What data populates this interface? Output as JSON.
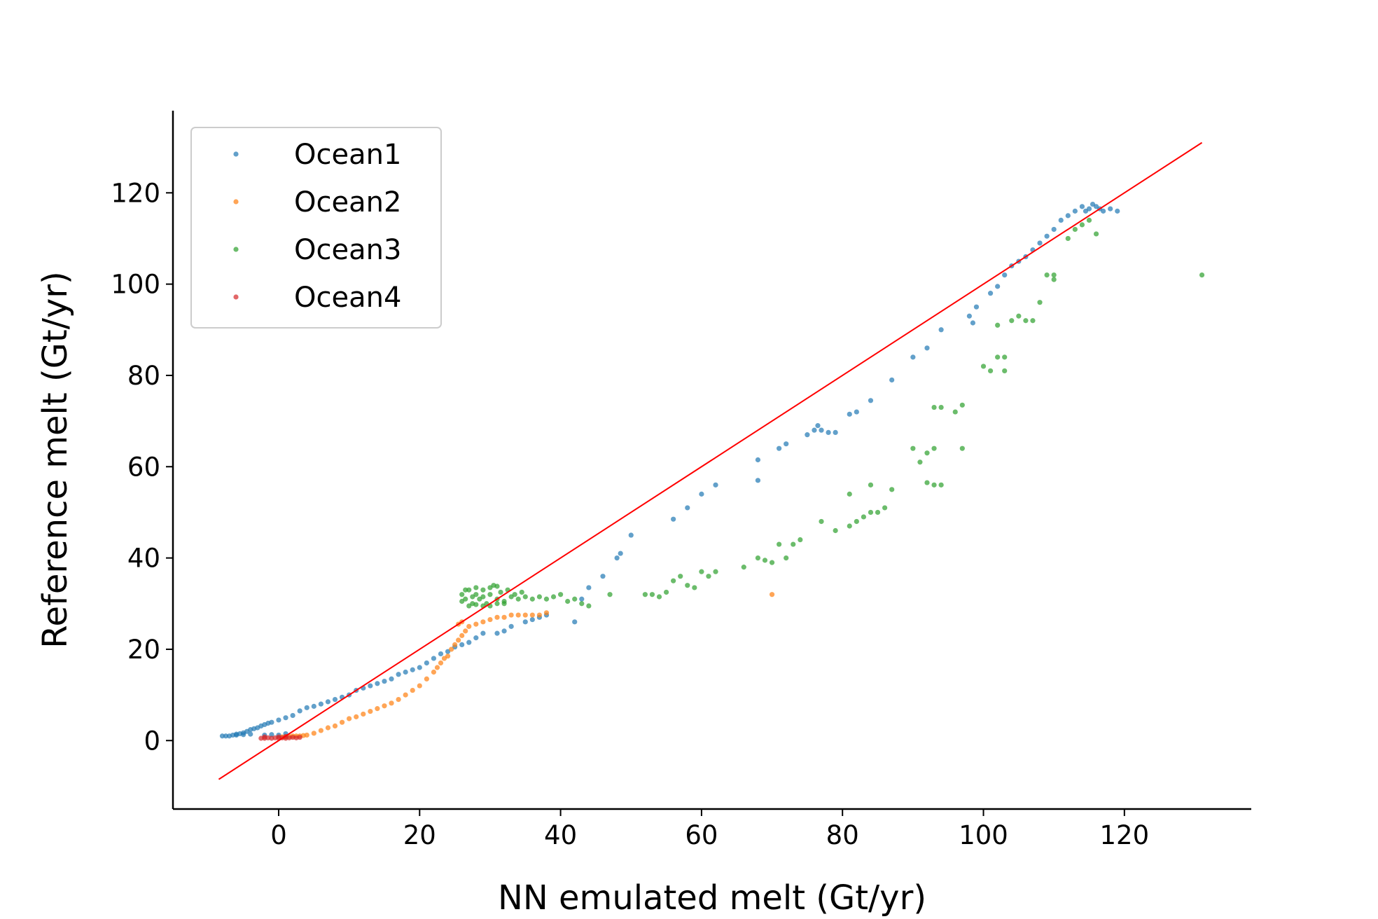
{
  "chart_data": {
    "type": "scatter",
    "title": "",
    "xlabel": "NN emulated melt (Gt/yr)",
    "ylabel": "Reference melt (Gt/yr)",
    "xlim": [
      -15,
      138
    ],
    "ylim": [
      -15,
      138
    ],
    "xticks": [
      0,
      20,
      40,
      60,
      80,
      100,
      120
    ],
    "yticks": [
      0,
      20,
      40,
      60,
      80,
      100,
      120
    ],
    "grid": false,
    "legend_position": "top-left",
    "reference_line": {
      "x": [
        -8.5,
        131
      ],
      "y": [
        -8.5,
        131
      ],
      "color": "#ff0000"
    },
    "series": [
      {
        "name": "Ocean1",
        "color": "#1f77b4",
        "points": [
          [
            -8,
            1
          ],
          [
            -7.5,
            1
          ],
          [
            -7,
            1
          ],
          [
            -6.5,
            1.2
          ],
          [
            -6,
            1.4
          ],
          [
            -5.5,
            1.5
          ],
          [
            -5,
            1.7
          ],
          [
            -4.5,
            2
          ],
          [
            -4,
            2.4
          ],
          [
            -3.5,
            2.6
          ],
          [
            -3,
            2.8
          ],
          [
            -2.5,
            3.2
          ],
          [
            -2,
            3.5
          ],
          [
            -1.5,
            3.8
          ],
          [
            -1,
            4
          ],
          [
            0,
            4.5
          ],
          [
            1,
            5
          ],
          [
            2,
            5.5
          ],
          [
            3,
            6.5
          ],
          [
            4,
            7.2
          ],
          [
            5,
            7.5
          ],
          [
            6,
            8
          ],
          [
            7,
            8.5
          ],
          [
            8,
            9
          ],
          [
            9,
            9.5
          ],
          [
            10,
            10
          ],
          [
            11,
            11
          ],
          [
            12,
            11.5
          ],
          [
            13,
            12
          ],
          [
            14,
            12.5
          ],
          [
            15,
            13
          ],
          [
            16,
            13.5
          ],
          [
            17,
            14.5
          ],
          [
            18,
            15
          ],
          [
            19,
            15.5
          ],
          [
            20,
            16
          ],
          [
            21,
            17
          ],
          [
            22,
            18
          ],
          [
            23,
            19
          ],
          [
            24,
            19.5
          ],
          [
            25,
            20.5
          ],
          [
            26,
            21
          ],
          [
            27,
            21.5
          ],
          [
            28,
            22.5
          ],
          [
            29,
            23.5
          ],
          [
            31,
            23.5
          ],
          [
            32,
            24
          ],
          [
            33,
            25
          ],
          [
            35,
            26
          ],
          [
            36,
            26.5
          ],
          [
            37,
            27
          ],
          [
            38,
            27.5
          ],
          [
            42,
            26
          ],
          [
            43,
            31
          ],
          [
            44,
            33.5
          ],
          [
            46,
            36
          ],
          [
            48,
            40
          ],
          [
            48.5,
            41
          ],
          [
            50,
            45
          ],
          [
            56,
            48.5
          ],
          [
            58,
            51
          ],
          [
            60,
            54
          ],
          [
            62,
            56
          ],
          [
            68,
            57
          ],
          [
            68,
            61.5
          ],
          [
            71,
            64
          ],
          [
            72,
            65
          ],
          [
            75,
            67
          ],
          [
            76,
            68
          ],
          [
            76.5,
            69
          ],
          [
            77,
            68
          ],
          [
            78,
            67.5
          ],
          [
            79,
            67.5
          ],
          [
            81,
            71.5
          ],
          [
            82,
            72
          ],
          [
            84,
            74.5
          ],
          [
            87,
            79
          ],
          [
            90,
            84
          ],
          [
            92,
            86
          ],
          [
            94,
            90
          ],
          [
            98,
            93
          ],
          [
            98.5,
            91.5
          ],
          [
            99,
            95
          ],
          [
            101,
            98
          ],
          [
            102,
            99.5
          ],
          [
            103,
            102
          ],
          [
            104,
            104
          ],
          [
            105,
            105
          ],
          [
            106,
            106
          ],
          [
            107,
            107.5
          ],
          [
            108,
            109
          ],
          [
            109,
            110.5
          ],
          [
            110,
            112
          ],
          [
            111,
            114
          ],
          [
            112,
            115
          ],
          [
            113,
            116
          ],
          [
            114,
            117
          ],
          [
            115,
            116.5
          ],
          [
            116,
            117
          ],
          [
            117,
            116
          ],
          [
            118,
            116.5
          ],
          [
            119,
            116
          ],
          [
            114.5,
            116
          ],
          [
            115.5,
            117.5
          ],
          [
            116.5,
            116.5
          ],
          [
            -2,
            1.2
          ],
          [
            -1,
            1.3
          ],
          [
            0,
            1.2
          ],
          [
            1,
            1.5
          ],
          [
            -6,
            1.2
          ],
          [
            -5,
            1.3
          ],
          [
            -4,
            1.4
          ]
        ]
      },
      {
        "name": "Ocean2",
        "color": "#ff7f0e",
        "points": [
          [
            2,
            1
          ],
          [
            3,
            1
          ],
          [
            4,
            1.2
          ],
          [
            5,
            1.6
          ],
          [
            6,
            2.2
          ],
          [
            7,
            2.8
          ],
          [
            8,
            3.2
          ],
          [
            9,
            4
          ],
          [
            10,
            4.8
          ],
          [
            11,
            5.2
          ],
          [
            12,
            5.8
          ],
          [
            13,
            6.4
          ],
          [
            14,
            7
          ],
          [
            15,
            7.6
          ],
          [
            16,
            8.2
          ],
          [
            17,
            9
          ],
          [
            18,
            10
          ],
          [
            19,
            11
          ],
          [
            20,
            12
          ],
          [
            21,
            13.5
          ],
          [
            22,
            15
          ],
          [
            22.5,
            16
          ],
          [
            23,
            17
          ],
          [
            23.5,
            18
          ],
          [
            24,
            18.5
          ],
          [
            24.5,
            20
          ],
          [
            25,
            21
          ],
          [
            25.5,
            22
          ],
          [
            26,
            23
          ],
          [
            26.5,
            24
          ],
          [
            25.5,
            25.5
          ],
          [
            26,
            26
          ],
          [
            27,
            25
          ],
          [
            28,
            25.5
          ],
          [
            29,
            26
          ],
          [
            30,
            26.5
          ],
          [
            31,
            27
          ],
          [
            32,
            27
          ],
          [
            33,
            27.5
          ],
          [
            34,
            27.5
          ],
          [
            35,
            27.5
          ],
          [
            36,
            27.5
          ],
          [
            37,
            27.5
          ],
          [
            38,
            28
          ],
          [
            70,
            32
          ],
          [
            0.5,
            0.8
          ],
          [
            1,
            0.8
          ],
          [
            1.5,
            0.9
          ],
          [
            2.5,
            1
          ],
          [
            3.5,
            1.1
          ]
        ]
      },
      {
        "name": "Ocean3",
        "color": "#2ca02c",
        "points": [
          [
            26,
            32
          ],
          [
            26.5,
            31
          ],
          [
            27,
            33
          ],
          [
            27.5,
            30
          ],
          [
            28,
            32
          ],
          [
            28.5,
            31
          ],
          [
            29,
            33
          ],
          [
            29.5,
            30
          ],
          [
            30,
            32
          ],
          [
            30.5,
            34
          ],
          [
            31,
            31
          ],
          [
            31.5,
            32.5
          ],
          [
            32,
            30.5
          ],
          [
            32.5,
            33
          ],
          [
            33,
            31.5
          ],
          [
            33.5,
            32
          ],
          [
            34,
            31
          ],
          [
            34.5,
            32.5
          ],
          [
            35,
            31.5
          ],
          [
            26,
            30.5
          ],
          [
            27,
            29.5
          ],
          [
            28,
            29.8
          ],
          [
            29,
            29.5
          ],
          [
            30,
            29.5
          ],
          [
            31,
            30
          ],
          [
            32,
            30
          ],
          [
            26.5,
            33
          ],
          [
            28,
            33.5
          ],
          [
            30,
            33.5
          ],
          [
            31,
            33.8
          ],
          [
            29,
            31.5
          ],
          [
            27.5,
            31.5
          ],
          [
            36,
            31
          ],
          [
            37,
            31.5
          ],
          [
            38,
            31
          ],
          [
            39,
            31.5
          ],
          [
            40,
            32
          ],
          [
            41,
            30.5
          ],
          [
            42,
            31
          ],
          [
            43,
            30
          ],
          [
            44,
            29.5
          ],
          [
            47,
            32
          ],
          [
            52,
            32
          ],
          [
            53,
            32
          ],
          [
            54,
            31.5
          ],
          [
            55,
            32.5
          ],
          [
            56,
            35
          ],
          [
            57,
            36
          ],
          [
            58,
            34
          ],
          [
            59,
            33.5
          ],
          [
            60,
            37
          ],
          [
            61,
            36
          ],
          [
            62,
            37
          ],
          [
            66,
            38
          ],
          [
            68,
            40
          ],
          [
            69,
            39.5
          ],
          [
            70,
            39
          ],
          [
            71,
            43
          ],
          [
            72,
            40
          ],
          [
            73,
            43
          ],
          [
            74,
            44
          ],
          [
            77,
            48
          ],
          [
            79,
            46
          ],
          [
            81,
            47
          ],
          [
            82,
            48
          ],
          [
            83,
            49
          ],
          [
            84,
            50
          ],
          [
            85,
            50
          ],
          [
            86,
            51
          ],
          [
            81,
            54
          ],
          [
            84,
            56
          ],
          [
            87,
            55
          ],
          [
            90,
            64
          ],
          [
            91,
            61
          ],
          [
            92,
            63
          ],
          [
            93,
            64
          ],
          [
            92,
            56.5
          ],
          [
            93,
            56
          ],
          [
            94,
            56
          ],
          [
            93,
            73
          ],
          [
            94,
            73
          ],
          [
            96,
            72
          ],
          [
            97,
            73.5
          ],
          [
            97,
            64
          ],
          [
            100,
            82
          ],
          [
            101,
            81
          ],
          [
            102,
            84
          ],
          [
            103,
            84
          ],
          [
            103,
            81
          ],
          [
            102,
            91
          ],
          [
            104,
            92
          ],
          [
            105,
            93
          ],
          [
            106,
            92
          ],
          [
            107,
            92
          ],
          [
            108,
            96
          ],
          [
            109,
            102
          ],
          [
            110,
            102
          ],
          [
            110,
            101
          ],
          [
            112,
            110
          ],
          [
            113,
            112
          ],
          [
            114,
            113
          ],
          [
            115,
            114
          ],
          [
            116,
            111
          ],
          [
            131,
            102
          ]
        ]
      },
      {
        "name": "Ocean4",
        "color": "#d62728",
        "points": [
          [
            -2.5,
            0.5
          ],
          [
            -2,
            0.5
          ],
          [
            -1.5,
            0.6
          ],
          [
            -1,
            0.5
          ],
          [
            -0.5,
            0.6
          ],
          [
            0,
            0.5
          ],
          [
            0.5,
            0.6
          ],
          [
            1,
            0.5
          ],
          [
            1.5,
            0.6
          ],
          [
            2,
            0.7
          ],
          [
            2.5,
            0.6
          ],
          [
            3,
            0.7
          ],
          [
            -2,
            0.8
          ],
          [
            0,
            0.8
          ],
          [
            1,
            0.9
          ]
        ]
      }
    ]
  }
}
